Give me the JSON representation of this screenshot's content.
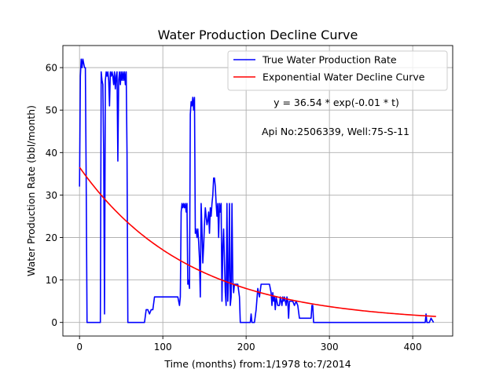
{
  "chart_data": {
    "type": "line",
    "title": "Water Production Decline Curve",
    "xlabel": "Time (months) from:1/1978 to:7/2014",
    "ylabel": "Water Production Rate (bbl/month)",
    "xlim": [
      -20,
      448
    ],
    "ylim": [
      -3.2,
      65.2
    ],
    "xticks": [
      0,
      100,
      200,
      300,
      400
    ],
    "yticks": [
      0,
      10,
      20,
      30,
      40,
      50,
      60
    ],
    "grid": true,
    "legend_position": "top-right",
    "annotations": [
      "y = 36.54 * exp(-0.01 * t)",
      "Api No:2506339, Well:75-S-11"
    ],
    "series": [
      {
        "name": "True Water Production Rate",
        "color": "#0000ff",
        "style": "solid",
        "points": [
          [
            0,
            32
          ],
          [
            1,
            58
          ],
          [
            2,
            62
          ],
          [
            3,
            60
          ],
          [
            4,
            62
          ],
          [
            5,
            61
          ],
          [
            6,
            60
          ],
          [
            7,
            60
          ],
          [
            8,
            33
          ],
          [
            9,
            0
          ],
          [
            15,
            0
          ],
          [
            20,
            0
          ],
          [
            25,
            0
          ],
          [
            26,
            59
          ],
          [
            27,
            57
          ],
          [
            28,
            56
          ],
          [
            29,
            40
          ],
          [
            30,
            2
          ],
          [
            31,
            57
          ],
          [
            32,
            59
          ],
          [
            33,
            58
          ],
          [
            34,
            59
          ],
          [
            35,
            57
          ],
          [
            36,
            51
          ],
          [
            37,
            59
          ],
          [
            38,
            58
          ],
          [
            39,
            59
          ],
          [
            40,
            58
          ],
          [
            41,
            56
          ],
          [
            42,
            59
          ],
          [
            43,
            55
          ],
          [
            44,
            58
          ],
          [
            45,
            59
          ],
          [
            46,
            38
          ],
          [
            47,
            57
          ],
          [
            48,
            59
          ],
          [
            49,
            56
          ],
          [
            50,
            59
          ],
          [
            51,
            57
          ],
          [
            52,
            59
          ],
          [
            53,
            57
          ],
          [
            54,
            59
          ],
          [
            55,
            56
          ],
          [
            56,
            59
          ],
          [
            57,
            40
          ],
          [
            58,
            0
          ],
          [
            65,
            0
          ],
          [
            72,
            0
          ],
          [
            78,
            0
          ],
          [
            80,
            3
          ],
          [
            82,
            3
          ],
          [
            84,
            2
          ],
          [
            86,
            3
          ],
          [
            88,
            3
          ],
          [
            90,
            6
          ],
          [
            100,
            6
          ],
          [
            110,
            6
          ],
          [
            118,
            6
          ],
          [
            120,
            4
          ],
          [
            121,
            6
          ],
          [
            122,
            26
          ],
          [
            123,
            28
          ],
          [
            124,
            27
          ],
          [
            125,
            28
          ],
          [
            126,
            27
          ],
          [
            127,
            28
          ],
          [
            128,
            26
          ],
          [
            129,
            28
          ],
          [
            130,
            9
          ],
          [
            131,
            10
          ],
          [
            132,
            8
          ],
          [
            133,
            49
          ],
          [
            134,
            52
          ],
          [
            135,
            51
          ],
          [
            136,
            53
          ],
          [
            137,
            50
          ],
          [
            138,
            53
          ],
          [
            139,
            21
          ],
          [
            140,
            22
          ],
          [
            141,
            20
          ],
          [
            142,
            22
          ],
          [
            143,
            19
          ],
          [
            144,
            15
          ],
          [
            145,
            6
          ],
          [
            146,
            28
          ],
          [
            147,
            22
          ],
          [
            148,
            14
          ],
          [
            149,
            18
          ],
          [
            150,
            23
          ],
          [
            151,
            27
          ],
          [
            152,
            25
          ],
          [
            153,
            23
          ],
          [
            154,
            24
          ],
          [
            155,
            26
          ],
          [
            156,
            21
          ],
          [
            157,
            27
          ],
          [
            158,
            25
          ],
          [
            159,
            28
          ],
          [
            160,
            30
          ],
          [
            161,
            34
          ],
          [
            162,
            34
          ],
          [
            163,
            32
          ],
          [
            164,
            28
          ],
          [
            165,
            25
          ],
          [
            166,
            28
          ],
          [
            167,
            20
          ],
          [
            168,
            28
          ],
          [
            169,
            26
          ],
          [
            170,
            28
          ],
          [
            171,
            5
          ],
          [
            172,
            18
          ],
          [
            173,
            22
          ],
          [
            174,
            14
          ],
          [
            175,
            7
          ],
          [
            176,
            4
          ],
          [
            177,
            28
          ],
          [
            178,
            5
          ],
          [
            179,
            11
          ],
          [
            180,
            28
          ],
          [
            181,
            4
          ],
          [
            182,
            6
          ],
          [
            183,
            28
          ],
          [
            184,
            10
          ],
          [
            185,
            7
          ],
          [
            186,
            9
          ],
          [
            188,
            9
          ],
          [
            190,
            9
          ],
          [
            192,
            6
          ],
          [
            193,
            0
          ],
          [
            200,
            0
          ],
          [
            205,
            0
          ],
          [
            206,
            2
          ],
          [
            207,
            0
          ],
          [
            210,
            0
          ],
          [
            212,
            3
          ],
          [
            214,
            8
          ],
          [
            216,
            6
          ],
          [
            218,
            9
          ],
          [
            222,
            9
          ],
          [
            226,
            9
          ],
          [
            228,
            9
          ],
          [
            230,
            7
          ],
          [
            231,
            4
          ],
          [
            232,
            7
          ],
          [
            233,
            5
          ],
          [
            234,
            6
          ],
          [
            235,
            3
          ],
          [
            236,
            6
          ],
          [
            237,
            5
          ],
          [
            238,
            4
          ],
          [
            240,
            4
          ],
          [
            241,
            6
          ],
          [
            242,
            5
          ],
          [
            243,
            4
          ],
          [
            244,
            6
          ],
          [
            245,
            5
          ],
          [
            246,
            6
          ],
          [
            247,
            5
          ],
          [
            248,
            4
          ],
          [
            249,
            6
          ],
          [
            250,
            5
          ],
          [
            251,
            1
          ],
          [
            252,
            5
          ],
          [
            254,
            5
          ],
          [
            256,
            5
          ],
          [
            258,
            4
          ],
          [
            260,
            5
          ],
          [
            262,
            4
          ],
          [
            264,
            1
          ],
          [
            266,
            1
          ],
          [
            268,
            1
          ],
          [
            270,
            1
          ],
          [
            272,
            1
          ],
          [
            276,
            1
          ],
          [
            278,
            1
          ],
          [
            279,
            4
          ],
          [
            280,
            4
          ],
          [
            281,
            0
          ],
          [
            300,
            0
          ],
          [
            340,
            0
          ],
          [
            380,
            0
          ],
          [
            415,
            0
          ],
          [
            416,
            2
          ],
          [
            417,
            0
          ],
          [
            420,
            0
          ],
          [
            422,
            1
          ],
          [
            425,
            0
          ]
        ]
      },
      {
        "name": "Exponential Water Decline Curve",
        "color": "#ff0000",
        "style": "solid",
        "fit": {
          "a": 36.54,
          "b": -0.0076,
          "t_start": 0,
          "t_end": 428
        }
      }
    ]
  }
}
